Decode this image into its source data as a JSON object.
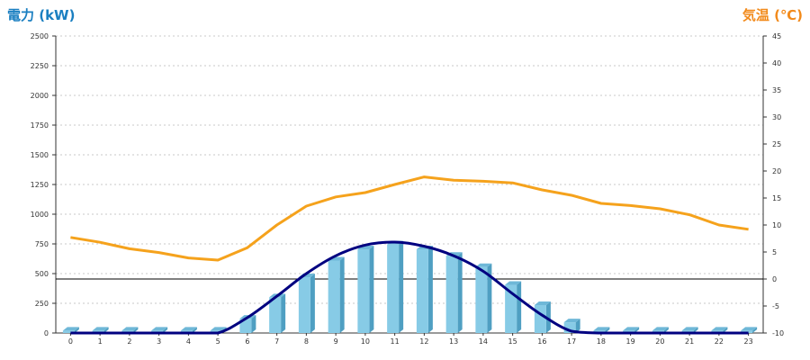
{
  "chart_data": {
    "type": "bar",
    "title": "",
    "y_left": {
      "label": "電力 (kW)",
      "color": "#1a7fc1",
      "range": [
        0,
        2500
      ],
      "ticks": [
        "0",
        "250",
        "500",
        "750",
        "1000",
        "1250",
        "1500",
        "1750",
        "2000",
        "2250",
        "2500"
      ]
    },
    "y_right": {
      "label": "気温 (℃)",
      "color": "#f28a1b",
      "range": [
        -10,
        45
      ],
      "ticks": [
        "-10",
        "-5",
        "0",
        "5",
        "10",
        "15",
        "20",
        "25",
        "30",
        "35",
        "40",
        "45"
      ]
    },
    "categories": [
      "0",
      "1",
      "2",
      "3",
      "4",
      "5",
      "6",
      "7",
      "8",
      "9",
      "10",
      "11",
      "12",
      "13",
      "14",
      "15",
      "16",
      "17",
      "18",
      "19",
      "20",
      "21",
      "22",
      "23"
    ],
    "grid": "horizontal-dotted",
    "series": [
      {
        "type": "bar",
        "axis": "left",
        "color": "#87cbe6",
        "values": [
          20,
          20,
          20,
          20,
          20,
          20,
          120,
          300,
          470,
          610,
          705,
          745,
          705,
          650,
          555,
          405,
          235,
          90,
          20,
          20,
          20,
          20,
          20,
          20
        ]
      },
      {
        "type": "line",
        "axis": "left",
        "color": "#000080",
        "smooth": true,
        "values": [
          0,
          0,
          0,
          0,
          0,
          0,
          130,
          310,
          500,
          650,
          740,
          765,
          730,
          650,
          520,
          330,
          150,
          15,
          0,
          0,
          0,
          0,
          0,
          0
        ]
      },
      {
        "type": "line",
        "axis": "right",
        "color": "#f5a21c",
        "values": [
          7.7,
          6.8,
          5.6,
          4.9,
          3.9,
          3.5,
          5.8,
          10,
          13.5,
          15.2,
          16,
          17.5,
          18.9,
          18.3,
          18.1,
          17.8,
          16.5,
          15.5,
          14,
          13.6,
          13,
          11.9,
          10,
          9.2
        ]
      },
      {
        "type": "reference",
        "axis": "right",
        "color": "#000000",
        "value": 0
      }
    ]
  }
}
